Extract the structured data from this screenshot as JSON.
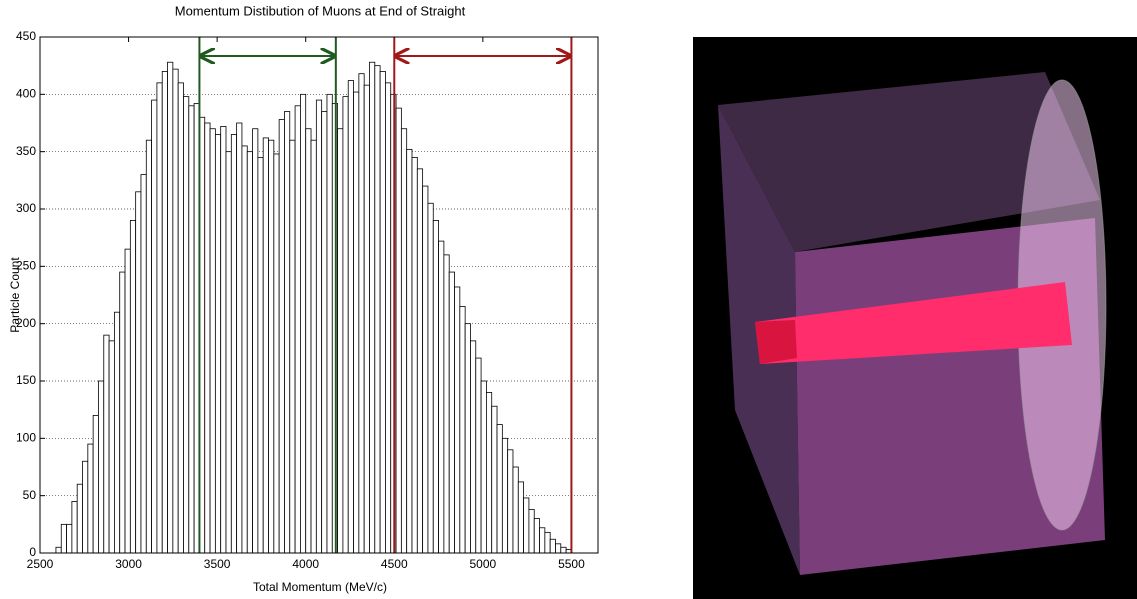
{
  "chart_data": {
    "type": "histogram",
    "title": "Momentum Distibution of Muons at End of Straight",
    "x_label": "Total Momentum (MeV/c)",
    "y_label": "Particle Count",
    "bins": [
      2590,
      2620,
      2650,
      2680,
      2710,
      2740,
      2770,
      2800,
      2830,
      2860,
      2890,
      2920,
      2950,
      2980,
      3010,
      3040,
      3070,
      3100,
      3130,
      3160,
      3190,
      3220,
      3250,
      3280,
      3310,
      3340,
      3370,
      3400,
      3430,
      3460,
      3490,
      3520,
      3550,
      3580,
      3610,
      3640,
      3670,
      3700,
      3730,
      3760,
      3790,
      3820,
      3850,
      3880,
      3910,
      3940,
      3970,
      4000,
      4030,
      4060,
      4090,
      4120,
      4150,
      4180,
      4210,
      4240,
      4270,
      4300,
      4330,
      4360,
      4390,
      4420,
      4450,
      4480,
      4510,
      4540,
      4570,
      4600,
      4630,
      4660,
      4690,
      4720,
      4750,
      4780,
      4810,
      4840,
      4870,
      4900,
      4930,
      4960,
      4990,
      5020,
      5050,
      5080,
      5110,
      5140,
      5170,
      5200,
      5230,
      5260,
      5290,
      5320,
      5350,
      5380,
      5410,
      5440,
      5470,
      5500
    ],
    "values": [
      5,
      25,
      25,
      45,
      60,
      80,
      95,
      120,
      150,
      190,
      185,
      210,
      245,
      265,
      290,
      315,
      330,
      360,
      395,
      410,
      420,
      428,
      422,
      410,
      398,
      390,
      392,
      380,
      375,
      370,
      365,
      372,
      350,
      365,
      375,
      355,
      350,
      370,
      345,
      362,
      360,
      348,
      378,
      385,
      360,
      390,
      400,
      370,
      360,
      395,
      385,
      400,
      392,
      370,
      398,
      412,
      402,
      418,
      408,
      428,
      425,
      420,
      410,
      400,
      388,
      370,
      352,
      345,
      335,
      320,
      305,
      290,
      272,
      260,
      245,
      232,
      215,
      200,
      185,
      170,
      150,
      140,
      128,
      112,
      100,
      90,
      75,
      62,
      48,
      38,
      30,
      22,
      18,
      12,
      8,
      5,
      3
    ],
    "color": "#ffffff",
    "xlim": [
      2500,
      5650
    ],
    "ylim": [
      0,
      450
    ],
    "xticks": [
      2500,
      3000,
      3500,
      4000,
      4500,
      5000,
      5500
    ],
    "yticks": [
      0,
      50,
      100,
      150,
      200,
      250,
      300,
      350,
      400,
      450
    ],
    "grid": true,
    "ranges": [
      {
        "start": 3400,
        "end": 4170,
        "color": "#1f5a1f"
      },
      {
        "start": 4500,
        "end": 5500,
        "color": "#a01818"
      }
    ]
  }
}
